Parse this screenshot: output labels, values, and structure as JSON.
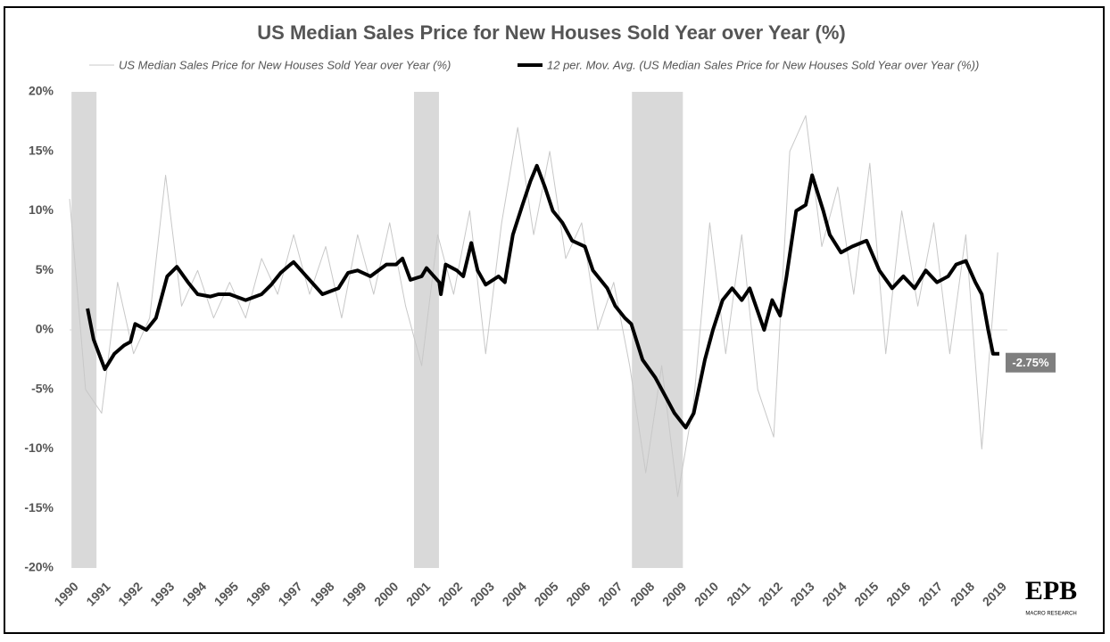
{
  "chart_data": {
    "type": "line",
    "title": "US Median Sales Price for New Houses Sold  Year over Year (%)",
    "series": [
      {
        "name": "US Median Sales Price for New Houses Sold  Year over Year (%)",
        "color": "#c8c8c8",
        "x": [
          1990,
          1990.5,
          1991,
          1991.5,
          1992,
          1992.5,
          1993,
          1993.5,
          1994,
          1994.5,
          1995,
          1995.5,
          1996,
          1996.5,
          1997,
          1997.5,
          1998,
          1998.5,
          1999,
          1999.5,
          2000,
          2000.5,
          2001,
          2001.5,
          2002,
          2002.5,
          2003,
          2003.5,
          2004,
          2004.5,
          2005,
          2005.5,
          2006,
          2006.5,
          2007,
          2007.5,
          2008,
          2008.5,
          2009,
          2009.5,
          2010,
          2010.5,
          2011,
          2011.5,
          2012,
          2012.5,
          2013,
          2013.5,
          2014,
          2014.5,
          2015,
          2015.5,
          2016,
          2016.5,
          2017,
          2017.5,
          2018,
          2018.5,
          2019
        ],
        "values": [
          11,
          -5,
          -7,
          4,
          -2,
          1,
          13,
          2,
          5,
          1,
          4,
          1,
          6,
          3,
          8,
          3,
          7,
          1,
          8,
          3,
          9,
          2,
          -3,
          8,
          3,
          10,
          -2,
          9,
          17,
          8,
          15,
          6,
          9,
          0,
          4,
          -3,
          -12,
          -3,
          -14,
          -6,
          9,
          -2,
          8,
          -5,
          -9,
          15,
          18,
          7,
          12,
          3,
          14,
          -2,
          10,
          2,
          9,
          -2,
          8,
          -10,
          6.5
        ]
      },
      {
        "name": "12 per. Mov. Avg. (US Median Sales Price for New Houses Sold  Year over Year (%))",
        "color": "#000000",
        "x": [
          1990.56,
          1990.75,
          1991.1,
          1991.4,
          1991.7,
          1991.9,
          1992.05,
          1992.4,
          1992.7,
          1992.9,
          1993.05,
          1993.35,
          1993.7,
          1994.0,
          1994.4,
          1994.65,
          1995.0,
          1995.5,
          1996.0,
          1996.3,
          1996.6,
          1996.9,
          1997.0,
          1997.4,
          1997.9,
          1998.4,
          1998.7,
          1999.0,
          1999.4,
          1999.9,
          2000.2,
          2000.4,
          2000.65,
          2001.0,
          2001.15,
          2001.55,
          2001.6,
          2001.75,
          2002.1,
          2002.3,
          2002.55,
          2002.75,
          2003.0,
          2003.4,
          2003.6,
          2003.85,
          2004.15,
          2004.4,
          2004.6,
          2004.85,
          2005.1,
          2005.4,
          2005.7,
          2006.1,
          2006.35,
          2006.8,
          2007.05,
          2007.35,
          2007.55,
          2007.9,
          2008.3,
          2008.6,
          2008.9,
          2009.25,
          2009.5,
          2009.85,
          2010.1,
          2010.4,
          2010.7,
          2011.0,
          2011.25,
          2011.7,
          2011.95,
          2012.2,
          2012.4,
          2012.7,
          2013.0,
          2013.2,
          2013.55,
          2013.75,
          2014.1,
          2014.45,
          2014.9,
          2015.3,
          2015.7,
          2016.05,
          2016.4,
          2016.75,
          2017.1,
          2017.45,
          2017.7,
          2018.0,
          2018.3,
          2018.5,
          2018.7,
          2018.85,
          2019.05
        ],
        "values": [
          1.8,
          -0.8,
          -3.3,
          -2,
          -1.3,
          -1,
          0.5,
          0,
          1,
          3,
          4.5,
          5.3,
          4,
          3,
          2.8,
          3,
          3,
          2.5,
          3,
          3.8,
          4.8,
          5.5,
          5.7,
          4.5,
          3,
          3.5,
          4.8,
          5,
          4.5,
          5.5,
          5.5,
          6,
          4.2,
          4.5,
          5.2,
          4,
          3,
          5.5,
          5,
          4.5,
          7.3,
          5,
          3.8,
          4.5,
          4,
          8,
          10.5,
          12.5,
          13.8,
          12,
          10,
          9,
          7.5,
          7,
          5,
          3.5,
          2,
          1,
          0.5,
          -2.5,
          -4,
          -5.5,
          -7,
          -8.2,
          -7,
          -2.5,
          0,
          2.5,
          3.5,
          2.5,
          3.5,
          0,
          2.5,
          1.2,
          4.5,
          10,
          10.5,
          13,
          10,
          8,
          6.5,
          7,
          7.5,
          5,
          3.5,
          4.5,
          3.5,
          5,
          4,
          4.5,
          5.5,
          5.8,
          4,
          3,
          0,
          -2,
          -2
        ]
      }
    ],
    "recessions": [
      [
        1990.06,
        1990.84
      ],
      [
        2000.76,
        2001.54
      ],
      [
        2007.57,
        2009.16
      ]
    ],
    "annotations": [
      {
        "value": -2.75,
        "label": "-2.75%"
      }
    ],
    "xlim": [
      1990,
      2019.3
    ],
    "xticks": [
      1990,
      1991,
      1992,
      1993,
      1994,
      1995,
      1996,
      1997,
      1998,
      1999,
      2000,
      2001,
      2002,
      2003,
      2004,
      2005,
      2006,
      2007,
      2008,
      2009,
      2010,
      2011,
      2012,
      2013,
      2014,
      2015,
      2016,
      2017,
      2018,
      2019
    ],
    "ylim": [
      -20,
      20
    ],
    "yticks": [
      {
        "value": -20,
        "label": "-20%"
      },
      {
        "value": -15,
        "label": "-15%"
      },
      {
        "value": -10,
        "label": "-10%"
      },
      {
        "value": -5,
        "label": "-5%"
      },
      {
        "value": 0,
        "label": "0%"
      },
      {
        "value": 5,
        "label": "5%"
      },
      {
        "value": 10,
        "label": "10%"
      },
      {
        "value": 15,
        "label": "15%"
      },
      {
        "value": 20,
        "label": "20%"
      }
    ],
    "logo": {
      "name": "EPB",
      "tagline": "MACRO RESEARCH"
    }
  }
}
